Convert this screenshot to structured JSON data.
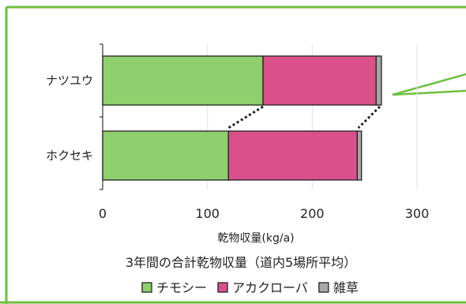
{
  "chart_data": {
    "type": "bar",
    "orientation": "horizontal",
    "stacked": true,
    "categories": [
      "ナツユウ",
      "ホクセキ"
    ],
    "series": [
      {
        "name": "チモシー",
        "color": "#8fcf6e",
        "values": [
          153,
          120
        ]
      },
      {
        "name": "アカクローバ",
        "color": "#d9508a",
        "values": [
          108,
          123
        ]
      },
      {
        "name": "雑草",
        "color": "#a8a8a8",
        "values": [
          5,
          4
        ]
      }
    ],
    "title": "3年間の合計乾物収量（道内5場所平均）",
    "xlabel": "乾物収量(kg/a)",
    "ylabel": "",
    "xlim": [
      0,
      300
    ],
    "xticks": [
      "0",
      "100",
      "200",
      "300"
    ],
    "grid": "vertical",
    "legend_position": "bottom"
  },
  "colors": {
    "frame_green": "#6cbf3f",
    "grid": "#e2e2e2",
    "dotted_link": "#222222"
  }
}
